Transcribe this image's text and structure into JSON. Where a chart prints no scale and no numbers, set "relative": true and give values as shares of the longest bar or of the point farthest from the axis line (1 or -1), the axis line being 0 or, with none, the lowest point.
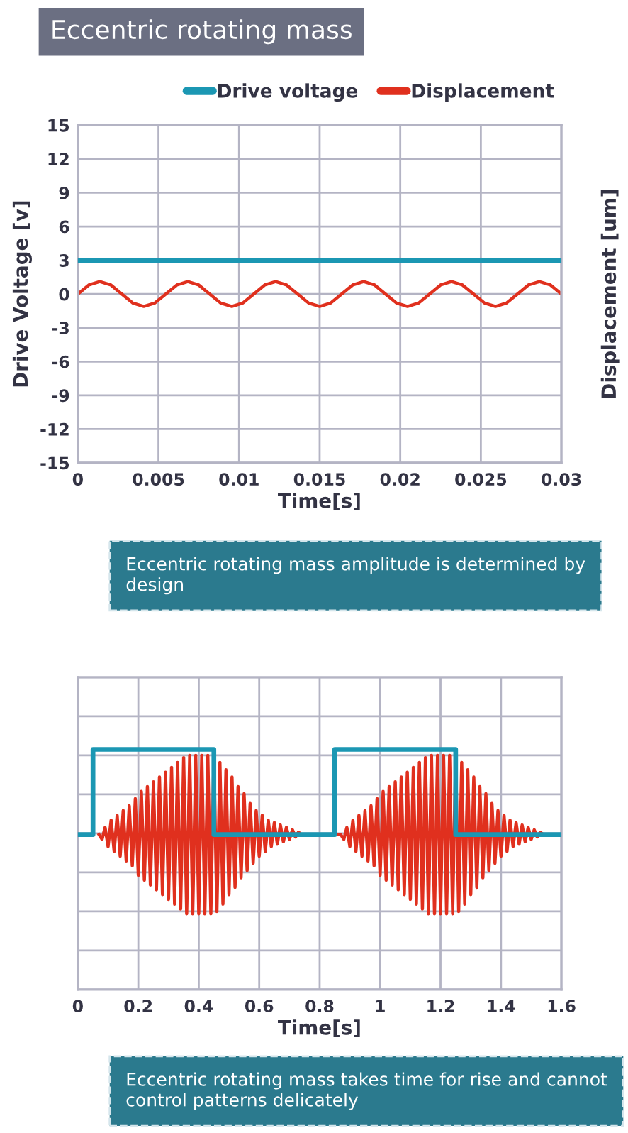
{
  "chart_data": [
    {
      "type": "line",
      "title": "Eccentric rotating mass",
      "xlabel": "Time[s]",
      "ylabel": "Drive Voltage [v]",
      "y2label": "Displacement [um]",
      "xlim": [
        0,
        0.03
      ],
      "xticks": [
        0,
        0.005,
        0.01,
        0.015,
        0.02,
        0.025,
        0.03
      ],
      "ylim": [
        -15,
        15
      ],
      "yticks": [
        -15,
        -12,
        -9,
        -6,
        -3,
        0,
        3,
        6,
        9,
        12,
        15
      ],
      "grid": true,
      "legend": "top right",
      "series": [
        {
          "name": "Drive voltage",
          "color": "#1b97b3",
          "x": [
            0,
            0.03
          ],
          "values": [
            3,
            3
          ]
        },
        {
          "name": "Displacement",
          "color": "#e0301e",
          "x": [
            0,
            0.00068,
            0.00136,
            0.00205,
            0.00273,
            0.00341,
            0.00409,
            0.00477,
            0.00545,
            0.00614,
            0.00682,
            0.0075,
            0.00818,
            0.00886,
            0.00955,
            0.01023,
            0.01091,
            0.01159,
            0.01227,
            0.01295,
            0.01364,
            0.01432,
            0.015,
            0.01568,
            0.01636,
            0.01705,
            0.01773,
            0.01841,
            0.01909,
            0.01977,
            0.02045,
            0.02114,
            0.02182,
            0.0225,
            0.02318,
            0.02386,
            0.02455,
            0.02523,
            0.02591,
            0.02659,
            0.02727,
            0.02795,
            0.02864,
            0.02932,
            0.03
          ],
          "values": [
            0,
            0.8,
            1.1,
            0.8,
            0,
            -0.8,
            -1.1,
            -0.8,
            0,
            0.8,
            1.1,
            0.8,
            0,
            -0.8,
            -1.1,
            -0.8,
            0,
            0.8,
            1.1,
            0.8,
            0,
            -0.8,
            -1.1,
            -0.8,
            0,
            0.8,
            1.1,
            0.8,
            0,
            -0.8,
            -1.1,
            -0.8,
            0,
            0.8,
            1.1,
            0.8,
            0,
            -0.8,
            -1.1,
            -0.8,
            0,
            0.8,
            1.1,
            0.8,
            0
          ]
        }
      ],
      "annotations": [
        "Eccentric rotating mass amplitude is determined by design"
      ]
    },
    {
      "type": "line",
      "xlabel": "Time[s]",
      "relative": true,
      "tick_labels": "x",
      "xlim": [
        0,
        1.6
      ],
      "xticks": [
        0,
        0.2,
        0.4,
        0.6,
        0.8,
        1,
        1.2,
        1.4,
        1.6
      ],
      "grid": true,
      "series": [
        {
          "color": "#1b97b3",
          "x": [
            0,
            0.05,
            0.05,
            0.45,
            0.45,
            0.85,
            0.85,
            1.25,
            1.25,
            1.6
          ],
          "values": [
            0.645,
            0.645,
            1,
            1,
            0.645,
            0.645,
            1,
            1,
            0.645,
            0.645
          ]
        },
        {
          "color": "#e0301e",
          "x": [
            0.07,
            0.08,
            0.09,
            0.1,
            0.11,
            0.12,
            0.13,
            0.14,
            0.15,
            0.16,
            0.17,
            0.18,
            0.19,
            0.2,
            0.21,
            0.22,
            0.23,
            0.24,
            0.25,
            0.26,
            0.27,
            0.28,
            0.29,
            0.3,
            0.31,
            0.32,
            0.33,
            0.34,
            0.35,
            0.36,
            0.37,
            0.38,
            0.39,
            0.4,
            0.41,
            0.42,
            0.43,
            0.44,
            0.45,
            0.46,
            0.47,
            0.48,
            0.49,
            0.5,
            0.51,
            0.52,
            0.53,
            0.54,
            0.55,
            0.56,
            0.57,
            0.58,
            0.59,
            0.6,
            0.61,
            0.62,
            0.63,
            0.64,
            0.65,
            0.66,
            0.67,
            0.68,
            0.69,
            0.7,
            0.71,
            0.72,
            0.73,
            0.74,
            0.87,
            0.88,
            0.89,
            0.9,
            0.91,
            0.92,
            0.93,
            0.94,
            0.95,
            0.96,
            0.97,
            0.98,
            0.99,
            1.0,
            1.01,
            1.02,
            1.03,
            1.04,
            1.05,
            1.06,
            1.07,
            1.08,
            1.09,
            1.1,
            1.11,
            1.12,
            1.13,
            1.14,
            1.15,
            1.16,
            1.17,
            1.18,
            1.19,
            1.2,
            1.21,
            1.22,
            1.23,
            1.24,
            1.25,
            1.26,
            1.27,
            1.28,
            1.29,
            1.3,
            1.31,
            1.32,
            1.33,
            1.34,
            1.35,
            1.36,
            1.37,
            1.38,
            1.39,
            1.4,
            1.41,
            1.42,
            1.43,
            1.44,
            1.45,
            1.46,
            1.47,
            1.48,
            1.49,
            1.5,
            1.51,
            1.52,
            1.53,
            1.54
          ],
          "values": [
            0.645,
            0.625,
            0.675,
            0.595,
            0.705,
            0.575,
            0.725,
            0.555,
            0.745,
            0.535,
            0.765,
            0.515,
            0.795,
            0.475,
            0.825,
            0.455,
            0.845,
            0.435,
            0.865,
            0.415,
            0.885,
            0.395,
            0.905,
            0.375,
            0.925,
            0.355,
            0.945,
            0.335,
            0.965,
            0.315,
            0.975,
            0.315,
            0.975,
            0.315,
            0.975,
            0.315,
            0.975,
            0.315,
            0.975,
            0.325,
            0.945,
            0.355,
            0.915,
            0.395,
            0.885,
            0.425,
            0.845,
            0.465,
            0.815,
            0.495,
            0.775,
            0.525,
            0.745,
            0.555,
            0.725,
            0.575,
            0.705,
            0.595,
            0.695,
            0.605,
            0.685,
            0.615,
            0.675,
            0.625,
            0.665,
            0.635,
            0.655,
            0.645,
            0.645,
            0.625,
            0.675,
            0.595,
            0.705,
            0.575,
            0.725,
            0.555,
            0.745,
            0.535,
            0.765,
            0.515,
            0.795,
            0.475,
            0.825,
            0.455,
            0.845,
            0.435,
            0.865,
            0.415,
            0.885,
            0.395,
            0.905,
            0.375,
            0.925,
            0.355,
            0.945,
            0.335,
            0.965,
            0.315,
            0.975,
            0.315,
            0.975,
            0.315,
            0.975,
            0.315,
            0.975,
            0.315,
            0.975,
            0.325,
            0.945,
            0.355,
            0.915,
            0.395,
            0.885,
            0.425,
            0.845,
            0.465,
            0.815,
            0.495,
            0.775,
            0.525,
            0.745,
            0.555,
            0.725,
            0.575,
            0.705,
            0.595,
            0.695,
            0.605,
            0.685,
            0.615,
            0.675,
            0.625,
            0.665,
            0.635,
            0.655,
            0.645
          ]
        }
      ],
      "annotations": [
        "Eccentric rotating mass takes time for rise and cannot control patterns delicately"
      ]
    }
  ]
}
